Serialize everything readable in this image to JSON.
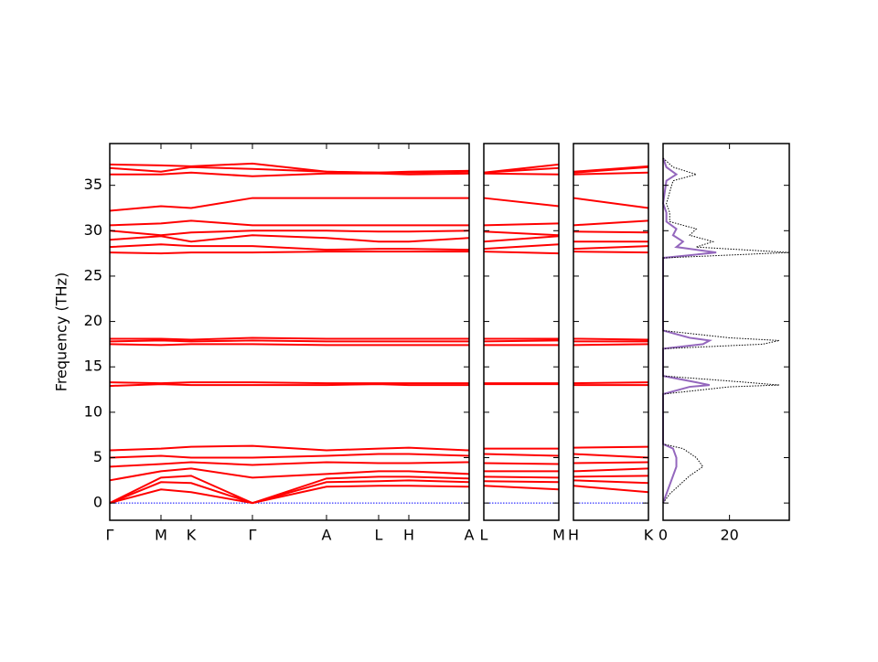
{
  "chart_data": [
    {
      "type": "line",
      "y_label": "Frequency (THz)",
      "x": [
        0,
        0.56,
        0.89,
        1.56,
        2.37,
        2.94,
        3.27,
        3.93
      ],
      "xlim": [
        0,
        3.93
      ],
      "xticks": [
        {
          "value": 0,
          "label": "Γ"
        },
        {
          "value": 0.56,
          "label": "M"
        },
        {
          "value": 0.89,
          "label": "K"
        },
        {
          "value": 1.56,
          "label": "Γ"
        },
        {
          "value": 2.37,
          "label": "A"
        },
        {
          "value": 2.94,
          "label": "L"
        },
        {
          "value": 3.27,
          "label": "H"
        },
        {
          "value": 3.93,
          "label": "A"
        }
      ],
      "ylim": [
        -1.9,
        39.6
      ],
      "yticks": [
        0,
        5,
        10,
        15,
        20,
        25,
        30,
        35
      ],
      "series": [
        {
          "color": "#0000ff",
          "linestyle": "dotted",
          "values": [
            0,
            0,
            0,
            0,
            0,
            0,
            0,
            0
          ]
        },
        {
          "color": "#ff0000",
          "values": [
            0,
            1.5,
            1.2,
            0,
            1.8,
            1.9,
            1.9,
            1.8
          ]
        },
        {
          "color": "#ff0000",
          "values": [
            0,
            2.3,
            2.2,
            0,
            2.3,
            2.4,
            2.5,
            2.3
          ]
        },
        {
          "color": "#ff0000",
          "values": [
            0,
            2.8,
            3.0,
            0,
            2.7,
            2.9,
            2.9,
            2.7
          ]
        },
        {
          "color": "#ff0000",
          "values": [
            2.5,
            3.5,
            3.8,
            2.8,
            3.2,
            3.5,
            3.5,
            3.2
          ]
        },
        {
          "color": "#ff0000",
          "values": [
            4.0,
            4.3,
            4.5,
            4.2,
            4.5,
            4.4,
            4.4,
            4.5
          ]
        },
        {
          "color": "#ff0000",
          "values": [
            5.0,
            5.2,
            5.0,
            5.0,
            5.2,
            5.4,
            5.4,
            5.2
          ]
        },
        {
          "color": "#ff0000",
          "values": [
            5.8,
            6.0,
            6.2,
            6.3,
            5.8,
            6.0,
            6.1,
            5.8
          ]
        },
        {
          "color": "#ff0000",
          "values": [
            12.9,
            13.1,
            13.0,
            13.0,
            13.0,
            13.1,
            13.0,
            13.0
          ]
        },
        {
          "color": "#ff0000",
          "values": [
            13.3,
            13.2,
            13.3,
            13.3,
            13.2,
            13.2,
            13.2,
            13.2
          ]
        },
        {
          "color": "#ff0000",
          "values": [
            17.5,
            17.4,
            17.5,
            17.5,
            17.4,
            17.4,
            17.4,
            17.4
          ]
        },
        {
          "color": "#ff0000",
          "values": [
            17.8,
            17.9,
            17.8,
            17.9,
            17.8,
            17.8,
            17.8,
            17.8
          ]
        },
        {
          "color": "#ff0000",
          "values": [
            18.1,
            18.1,
            18.0,
            18.2,
            18.1,
            18.1,
            18.1,
            18.1
          ]
        },
        {
          "color": "#ff0000",
          "values": [
            27.6,
            27.5,
            27.6,
            27.6,
            27.7,
            27.7,
            27.7,
            27.7
          ]
        },
        {
          "color": "#ff0000",
          "values": [
            28.2,
            28.5,
            28.3,
            28.3,
            27.9,
            28.0,
            28.0,
            27.9
          ]
        },
        {
          "color": "#ff0000",
          "values": [
            29.0,
            29.4,
            28.8,
            29.5,
            29.2,
            28.8,
            28.8,
            29.2
          ]
        },
        {
          "color": "#ff0000",
          "values": [
            30.0,
            29.5,
            29.8,
            30.0,
            30.0,
            29.9,
            29.9,
            30.0
          ]
        },
        {
          "color": "#ff0000",
          "values": [
            30.6,
            30.8,
            31.1,
            30.6,
            30.6,
            30.6,
            30.6,
            30.6
          ]
        },
        {
          "color": "#ff0000",
          "values": [
            32.2,
            32.7,
            32.5,
            33.6,
            33.6,
            33.6,
            33.6,
            33.6
          ]
        },
        {
          "color": "#ff0000",
          "values": [
            36.2,
            36.2,
            36.4,
            36.0,
            36.3,
            36.3,
            36.2,
            36.3
          ]
        },
        {
          "color": "#ff0000",
          "values": [
            36.9,
            36.5,
            37.0,
            36.8,
            36.5,
            36.4,
            36.4,
            36.5
          ]
        },
        {
          "color": "#ff0000",
          "values": [
            37.3,
            37.2,
            37.1,
            37.4,
            36.5,
            36.4,
            36.5,
            36.6
          ]
        }
      ]
    },
    {
      "type": "line",
      "x": [
        0,
        1
      ],
      "xlim": [
        0,
        1
      ],
      "xticks": [
        {
          "value": 0,
          "label": "L"
        },
        {
          "value": 1,
          "label": "M"
        }
      ],
      "ylim": [
        -1.9,
        39.6
      ],
      "yticks": [
        0,
        5,
        10,
        15,
        20,
        25,
        30,
        35
      ],
      "series": [
        {
          "color": "#0000ff",
          "linestyle": "dotted",
          "values": [
            0,
            0
          ]
        },
        {
          "color": "#ff0000",
          "values": [
            1.9,
            1.5
          ]
        },
        {
          "color": "#ff0000",
          "values": [
            2.4,
            2.3
          ]
        },
        {
          "color": "#ff0000",
          "values": [
            2.9,
            2.8
          ]
        },
        {
          "color": "#ff0000",
          "values": [
            3.5,
            3.5
          ]
        },
        {
          "color": "#ff0000",
          "values": [
            4.4,
            4.3
          ]
        },
        {
          "color": "#ff0000",
          "values": [
            5.4,
            5.2
          ]
        },
        {
          "color": "#ff0000",
          "values": [
            6.0,
            6.0
          ]
        },
        {
          "color": "#ff0000",
          "values": [
            13.1,
            13.1
          ]
        },
        {
          "color": "#ff0000",
          "values": [
            13.2,
            13.2
          ]
        },
        {
          "color": "#ff0000",
          "values": [
            17.4,
            17.4
          ]
        },
        {
          "color": "#ff0000",
          "values": [
            17.8,
            17.9
          ]
        },
        {
          "color": "#ff0000",
          "values": [
            18.1,
            18.1
          ]
        },
        {
          "color": "#ff0000",
          "values": [
            27.7,
            27.5
          ]
        },
        {
          "color": "#ff0000",
          "values": [
            28.0,
            28.5
          ]
        },
        {
          "color": "#ff0000",
          "values": [
            28.8,
            29.4
          ]
        },
        {
          "color": "#ff0000",
          "values": [
            29.9,
            29.5
          ]
        },
        {
          "color": "#ff0000",
          "values": [
            30.6,
            30.8
          ]
        },
        {
          "color": "#ff0000",
          "values": [
            33.6,
            32.7
          ]
        },
        {
          "color": "#ff0000",
          "values": [
            36.3,
            36.2
          ]
        },
        {
          "color": "#ff0000",
          "values": [
            36.4,
            36.9
          ]
        },
        {
          "color": "#ff0000",
          "values": [
            36.4,
            37.3
          ]
        }
      ]
    },
    {
      "type": "line",
      "x": [
        0,
        1
      ],
      "xlim": [
        0,
        1
      ],
      "xticks": [
        {
          "value": 0,
          "label": "H"
        },
        {
          "value": 1,
          "label": "K"
        }
      ],
      "ylim": [
        -1.9,
        39.6
      ],
      "yticks": [
        0,
        5,
        10,
        15,
        20,
        25,
        30,
        35
      ],
      "series": [
        {
          "color": "#0000ff",
          "linestyle": "dotted",
          "values": [
            0,
            0
          ]
        },
        {
          "color": "#ff0000",
          "values": [
            1.9,
            1.2
          ]
        },
        {
          "color": "#ff0000",
          "values": [
            2.5,
            2.2
          ]
        },
        {
          "color": "#ff0000",
          "values": [
            2.9,
            3.0
          ]
        },
        {
          "color": "#ff0000",
          "values": [
            3.5,
            3.8
          ]
        },
        {
          "color": "#ff0000",
          "values": [
            4.4,
            4.5
          ]
        },
        {
          "color": "#ff0000",
          "values": [
            5.4,
            5.0
          ]
        },
        {
          "color": "#ff0000",
          "values": [
            6.1,
            6.2
          ]
        },
        {
          "color": "#ff0000",
          "values": [
            13.0,
            13.0
          ]
        },
        {
          "color": "#ff0000",
          "values": [
            13.2,
            13.3
          ]
        },
        {
          "color": "#ff0000",
          "values": [
            17.4,
            17.5
          ]
        },
        {
          "color": "#ff0000",
          "values": [
            17.8,
            17.8
          ]
        },
        {
          "color": "#ff0000",
          "values": [
            18.1,
            18.0
          ]
        },
        {
          "color": "#ff0000",
          "values": [
            27.7,
            27.6
          ]
        },
        {
          "color": "#ff0000",
          "values": [
            28.0,
            28.3
          ]
        },
        {
          "color": "#ff0000",
          "values": [
            28.8,
            28.8
          ]
        },
        {
          "color": "#ff0000",
          "values": [
            29.9,
            29.8
          ]
        },
        {
          "color": "#ff0000",
          "values": [
            30.6,
            31.1
          ]
        },
        {
          "color": "#ff0000",
          "values": [
            33.6,
            32.5
          ]
        },
        {
          "color": "#ff0000",
          "values": [
            36.2,
            36.4
          ]
        },
        {
          "color": "#ff0000",
          "values": [
            36.4,
            37.0
          ]
        },
        {
          "color": "#ff0000",
          "values": [
            36.5,
            37.1
          ]
        }
      ]
    },
    {
      "type": "line",
      "orientation": "horizontal",
      "y": [
        0,
        1,
        2,
        3,
        4,
        5,
        6,
        6.5,
        12,
        12.8,
        13,
        13.3,
        14,
        17,
        17.5,
        17.9,
        18.2,
        19,
        27,
        27.6,
        28.2,
        28.8,
        29.5,
        30.2,
        31,
        32,
        33,
        35.5,
        36.2,
        37,
        38
      ],
      "xlim": [
        0,
        38
      ],
      "xticks": [
        0,
        20
      ],
      "ylim": [
        -1.9,
        39.6
      ],
      "yticks": [
        0,
        5,
        10,
        15,
        20,
        25,
        30,
        35
      ],
      "series": [
        {
          "color": "#9467bd",
          "linestyle": "solid",
          "values": [
            0,
            1,
            2,
            3,
            4,
            4,
            3,
            0,
            0,
            8,
            14,
            10,
            0,
            0,
            12,
            14,
            8,
            0,
            0,
            16,
            4,
            6,
            3,
            4,
            1,
            1,
            0,
            1,
            4,
            1,
            0
          ]
        },
        {
          "color": "#000000",
          "linestyle": "dotted",
          "values": [
            0,
            2,
            5,
            8,
            12,
            10,
            6,
            0,
            0,
            20,
            35,
            25,
            0,
            0,
            30,
            35,
            20,
            0,
            0,
            38,
            10,
            15,
            8,
            10,
            2,
            2,
            1,
            3,
            10,
            3,
            0
          ]
        }
      ]
    }
  ]
}
